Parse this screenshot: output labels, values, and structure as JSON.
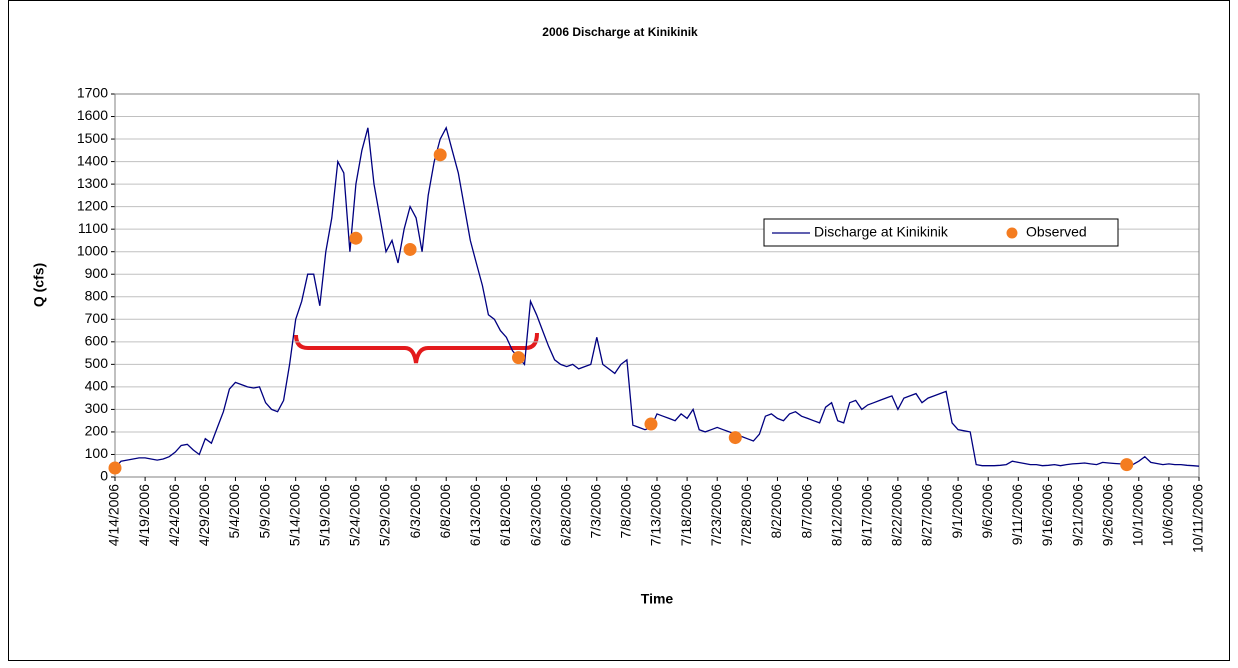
{
  "chart_data": {
    "type": "line",
    "title": "2006 Discharge at Kinikinik",
    "x_label": "Time",
    "y_label": "Q (cfs)",
    "x": [
      "4/14/2006",
      "4/15/2006",
      "4/16/2006",
      "4/17/2006",
      "4/18/2006",
      "4/19/2006",
      "4/20/2006",
      "4/21/2006",
      "4/22/2006",
      "4/23/2006",
      "4/24/2006",
      "4/25/2006",
      "4/26/2006",
      "4/27/2006",
      "4/28/2006",
      "4/29/2006",
      "4/30/2006",
      "5/1/2006",
      "5/2/2006",
      "5/3/2006",
      "5/4/2006",
      "5/5/2006",
      "5/6/2006",
      "5/7/2006",
      "5/8/2006",
      "5/9/2006",
      "5/10/2006",
      "5/11/2006",
      "5/12/2006",
      "5/13/2006",
      "5/14/2006",
      "5/15/2006",
      "5/16/2006",
      "5/17/2006",
      "5/18/2006",
      "5/19/2006",
      "5/20/2006",
      "5/21/2006",
      "5/22/2006",
      "5/23/2006",
      "5/24/2006",
      "5/25/2006",
      "5/26/2006",
      "5/27/2006",
      "5/28/2006",
      "5/29/2006",
      "5/30/2006",
      "5/31/2006",
      "6/1/2006",
      "6/2/2006",
      "6/3/2006",
      "6/4/2006",
      "6/5/2006",
      "6/6/2006",
      "6/7/2006",
      "6/8/2006",
      "6/9/2006",
      "6/10/2006",
      "6/11/2006",
      "6/12/2006",
      "6/13/2006",
      "6/14/2006",
      "6/15/2006",
      "6/16/2006",
      "6/17/2006",
      "6/18/2006",
      "6/19/2006",
      "6/20/2006",
      "6/21/2006",
      "6/22/2006",
      "6/23/2006",
      "6/24/2006",
      "6/25/2006",
      "6/26/2006",
      "6/27/2006",
      "6/28/2006",
      "6/29/2006",
      "6/30/2006",
      "7/1/2006",
      "7/2/2006",
      "7/3/2006",
      "7/4/2006",
      "7/5/2006",
      "7/6/2006",
      "7/7/2006",
      "7/8/2006",
      "7/9/2006",
      "7/10/2006",
      "7/11/2006",
      "7/12/2006",
      "7/13/2006",
      "7/14/2006",
      "7/15/2006",
      "7/16/2006",
      "7/17/2006",
      "7/18/2006",
      "7/19/2006",
      "7/20/2006",
      "7/21/2006",
      "7/22/2006",
      "7/23/2006",
      "7/24/2006",
      "7/25/2006",
      "7/26/2006",
      "7/27/2006",
      "7/28/2006",
      "7/29/2006",
      "7/30/2006",
      "7/31/2006",
      "8/1/2006",
      "8/2/2006",
      "8/3/2006",
      "8/4/2006",
      "8/5/2006",
      "8/6/2006",
      "8/7/2006",
      "8/8/2006",
      "8/9/2006",
      "8/10/2006",
      "8/11/2006",
      "8/12/2006",
      "8/13/2006",
      "8/14/2006",
      "8/15/2006",
      "8/16/2006",
      "8/17/2006",
      "8/18/2006",
      "8/19/2006",
      "8/20/2006",
      "8/21/2006",
      "8/22/2006",
      "8/23/2006",
      "8/24/2006",
      "8/25/2006",
      "8/26/2006",
      "8/27/2006",
      "8/28/2006",
      "8/29/2006",
      "8/30/2006",
      "8/31/2006",
      "9/1/2006",
      "9/2/2006",
      "9/3/2006",
      "9/4/2006",
      "9/5/2006",
      "9/6/2006",
      "9/7/2006",
      "9/8/2006",
      "9/9/2006",
      "9/10/2006",
      "9/11/2006",
      "9/12/2006",
      "9/13/2006",
      "9/14/2006",
      "9/15/2006",
      "9/16/2006",
      "9/17/2006",
      "9/18/2006",
      "9/19/2006",
      "9/20/2006",
      "9/21/2006",
      "9/22/2006",
      "9/23/2006",
      "9/24/2006",
      "9/25/2006",
      "9/26/2006",
      "9/27/2006",
      "9/28/2006",
      "9/29/2006",
      "9/30/2006",
      "10/1/2006",
      "10/2/2006",
      "10/3/2006",
      "10/4/2006",
      "10/5/2006",
      "10/6/2006",
      "10/7/2006",
      "10/8/2006",
      "10/9/2006",
      "10/10/2006",
      "10/11/2006"
    ],
    "series": [
      {
        "name": "Discharge at Kinikinik",
        "color": "#000080",
        "values": [
          40,
          70,
          75,
          80,
          85,
          85,
          80,
          75,
          80,
          90,
          110,
          140,
          145,
          120,
          100,
          170,
          150,
          220,
          290,
          390,
          420,
          410,
          400,
          395,
          400,
          330,
          300,
          290,
          340,
          500,
          700,
          780,
          900,
          900,
          760,
          1000,
          1150,
          1400,
          1350,
          1000,
          1300,
          1450,
          1550,
          1300,
          1150,
          1000,
          1050,
          950,
          1100,
          1200,
          1150,
          1000,
          1250,
          1400,
          1500,
          1550,
          1450,
          1350,
          1200,
          1050,
          950,
          850,
          720,
          700,
          650,
          620,
          560,
          530,
          500,
          780,
          720,
          650,
          580,
          520,
          500,
          490,
          500,
          480,
          490,
          500,
          620,
          500,
          480,
          460,
          500,
          520,
          230,
          220,
          210,
          220,
          280,
          270,
          260,
          250,
          280,
          260,
          300,
          210,
          200,
          210,
          220,
          210,
          200,
          190,
          180,
          170,
          160,
          190,
          270,
          280,
          260,
          250,
          280,
          290,
          270,
          260,
          250,
          240,
          310,
          330,
          250,
          240,
          330,
          340,
          300,
          320,
          330,
          340,
          350,
          360,
          300,
          350,
          360,
          370,
          330,
          350,
          360,
          370,
          380,
          240,
          210,
          205,
          200,
          55,
          50,
          50,
          50,
          52,
          55,
          70,
          65,
          60,
          55,
          55,
          50,
          52,
          55,
          50,
          55,
          58,
          60,
          62,
          58,
          55,
          65,
          62,
          60,
          58,
          60,
          55,
          70,
          90,
          65,
          60,
          55,
          58,
          55,
          55,
          52,
          50,
          48
        ]
      },
      {
        "name": "Observed",
        "type": "scatter",
        "color": "#f47c20",
        "x": [
          "4/14/2006",
          "5/24/2006",
          "6/2/2006",
          "6/7/2006",
          "6/20/2006",
          "7/12/2006",
          "7/26/2006",
          "9/29/2006"
        ],
        "values": [
          40,
          1060,
          1010,
          1430,
          530,
          235,
          175,
          55
        ]
      }
    ],
    "xlim": [
      "4/14/2006",
      "10/11/2006"
    ],
    "ylim": [
      0,
      1700
    ],
    "xticks": [
      "4/14/2006",
      "4/19/2006",
      "4/24/2006",
      "4/29/2006",
      "5/4/2006",
      "5/9/2006",
      "5/14/2006",
      "5/19/2006",
      "5/24/2006",
      "5/29/2006",
      "6/3/2006",
      "6/8/2006",
      "6/13/2006",
      "6/18/2006",
      "6/23/2006",
      "6/28/2006",
      "7/3/2006",
      "7/8/2006",
      "7/13/2006",
      "7/18/2006",
      "7/23/2006",
      "7/28/2006",
      "8/2/2006",
      "8/7/2006",
      "8/12/2006",
      "8/17/2006",
      "8/22/2006",
      "8/27/2006",
      "9/1/2006",
      "9/6/2006",
      "9/11/2006",
      "9/16/2006",
      "9/21/2006",
      "9/26/2006",
      "10/1/2006",
      "10/6/2006",
      "10/11/2006"
    ],
    "yticks": [
      0,
      100,
      200,
      300,
      400,
      500,
      600,
      700,
      800,
      900,
      1000,
      1100,
      1200,
      1300,
      1400,
      1500,
      1600,
      1700
    ],
    "grid": true,
    "legend": "right"
  }
}
